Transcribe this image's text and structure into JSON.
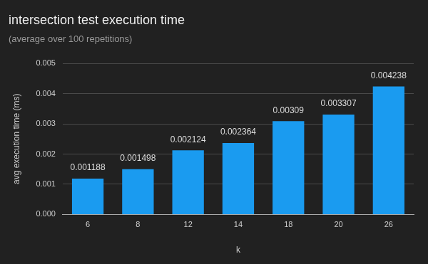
{
  "chart_data": {
    "type": "bar",
    "title": "intersection test execution time",
    "subtitle": "(average over 100 repetitions)",
    "x_label": "k",
    "y_label": "avg execution time (ms)",
    "categories": [
      "6",
      "8",
      "12",
      "14",
      "18",
      "20",
      "26"
    ],
    "values": [
      0.001188,
      0.001498,
      0.002124,
      0.002364,
      0.00309,
      0.003307,
      0.004238
    ],
    "color": "#1a9bf0",
    "ylim": [
      0,
      0.005
    ],
    "yticks": [
      {
        "value": 0,
        "label": "0.000"
      },
      0.001,
      0.002,
      0.003,
      0.004,
      0.005
    ],
    "grid": true,
    "data_labels": true
  }
}
